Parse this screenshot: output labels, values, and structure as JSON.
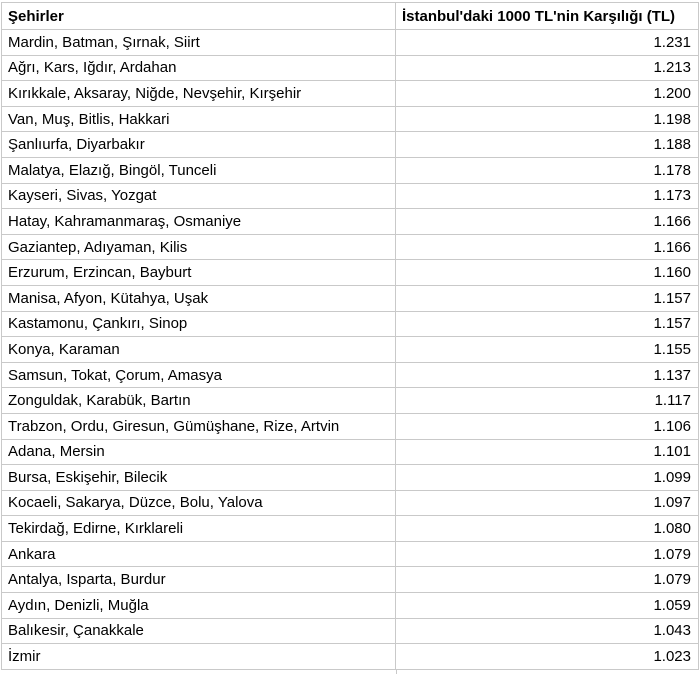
{
  "chart_data": {
    "type": "table",
    "columns": [
      "Şehirler",
      "İstanbul'daki 1000 TL'nin Karşılığı (TL)"
    ],
    "rows": [
      {
        "cities": "Mardin, Batman, Şırnak, Siirt",
        "display": "1.231",
        "value_tl": 1231
      },
      {
        "cities": "Ağrı, Kars, Iğdır, Ardahan",
        "display": "1.213",
        "value_tl": 1213
      },
      {
        "cities": "Kırıkkale, Aksaray, Niğde, Nevşehir, Kırşehir",
        "display": "1.200",
        "value_tl": 1200
      },
      {
        "cities": "Van, Muş, Bitlis, Hakkari",
        "display": "1.198",
        "value_tl": 1198
      },
      {
        "cities": "Şanlıurfa, Diyarbakır",
        "display": "1.188",
        "value_tl": 1188
      },
      {
        "cities": "Malatya, Elazığ, Bingöl, Tunceli",
        "display": "1.178",
        "value_tl": 1178
      },
      {
        "cities": "Kayseri, Sivas, Yozgat",
        "display": "1.173",
        "value_tl": 1173
      },
      {
        "cities": "Hatay, Kahramanmaraş, Osmaniye",
        "display": "1.166",
        "value_tl": 1166
      },
      {
        "cities": "Gaziantep, Adıyaman, Kilis",
        "display": "1.166",
        "value_tl": 1166
      },
      {
        "cities": "Erzurum, Erzincan, Bayburt",
        "display": "1.160",
        "value_tl": 1160
      },
      {
        "cities": "Manisa, Afyon, Kütahya, Uşak",
        "display": "1.157",
        "value_tl": 1157
      },
      {
        "cities": "Kastamonu, Çankırı, Sinop",
        "display": "1.157",
        "value_tl": 1157
      },
      {
        "cities": "Konya, Karaman",
        "display": "1.155",
        "value_tl": 1155
      },
      {
        "cities": "Samsun, Tokat, Çorum, Amasya",
        "display": "1.137",
        "value_tl": 1137
      },
      {
        "cities": "Zonguldak, Karabük, Bartın",
        "display": "1.117",
        "value_tl": 1117
      },
      {
        "cities": "Trabzon, Ordu, Giresun, Gümüşhane, Rize, Artvin",
        "display": "1.106",
        "value_tl": 1106
      },
      {
        "cities": "Adana, Mersin",
        "display": "1.101",
        "value_tl": 1101
      },
      {
        "cities": "Bursa, Eskişehir, Bilecik",
        "display": "1.099",
        "value_tl": 1099
      },
      {
        "cities": "Kocaeli, Sakarya, Düzce, Bolu, Yalova",
        "display": "1.097",
        "value_tl": 1097
      },
      {
        "cities": "Tekirdağ, Edirne, Kırklareli",
        "display": "1.080",
        "value_tl": 1080
      },
      {
        "cities": "Ankara",
        "display": "1.079",
        "value_tl": 1079
      },
      {
        "cities": "Antalya, Isparta, Burdur",
        "display": "1.079",
        "value_tl": 1079
      },
      {
        "cities": "Aydın, Denizli, Muğla",
        "display": "1.059",
        "value_tl": 1059
      },
      {
        "cities": "Balıkesir, Çanakkale",
        "display": "1.043",
        "value_tl": 1043
      },
      {
        "cities": "İzmir",
        "display": "1.023",
        "value_tl": 1023
      }
    ],
    "layout": {
      "grid": true,
      "header_bold": true,
      "value_align": "right",
      "cities_align": "left"
    }
  },
  "colors": {
    "background": "#ffffff",
    "text": "#000000",
    "gridline": "#c9c9c9"
  }
}
